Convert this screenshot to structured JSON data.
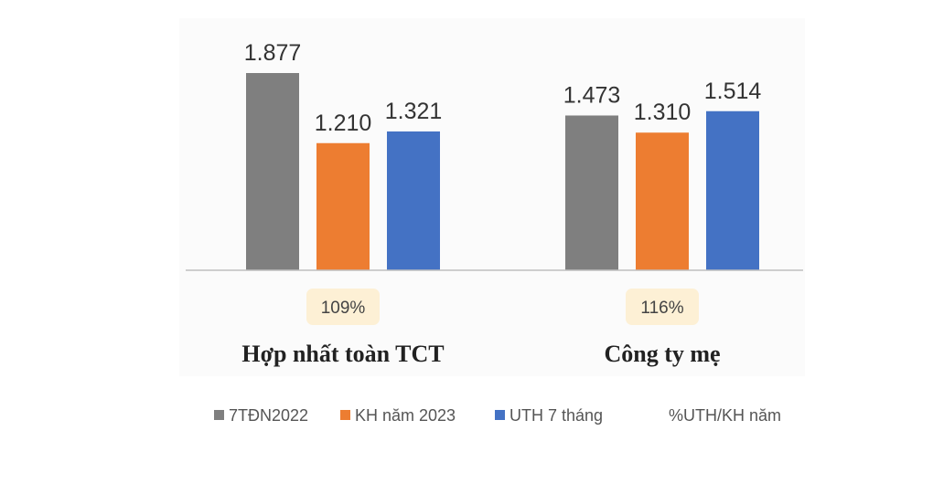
{
  "chart_data": {
    "type": "bar",
    "categories": [
      "Hợp nhất toàn TCT",
      "Công ty mẹ"
    ],
    "series": [
      {
        "name": "7TĐN2022",
        "values": [
          1877,
          1473
        ],
        "labels": [
          "1.877",
          "1.473"
        ],
        "color": "#7f7f7f"
      },
      {
        "name": "KH năm 2023",
        "values": [
          1210,
          1310
        ],
        "labels": [
          "1.210",
          "1.310"
        ],
        "color": "#ed7d31"
      },
      {
        "name": "UTH 7 tháng",
        "values": [
          1321,
          1514
        ],
        "labels": [
          "1.321",
          "1.514"
        ],
        "color": "#4472c4"
      }
    ],
    "ratio_series": {
      "name": "%UTH/KH năm",
      "values": [
        "109%",
        "116%"
      ],
      "badge_color": "#fdf0d5"
    },
    "ylim": [
      0,
      2000
    ],
    "legend_position": "bottom",
    "grid": false
  }
}
